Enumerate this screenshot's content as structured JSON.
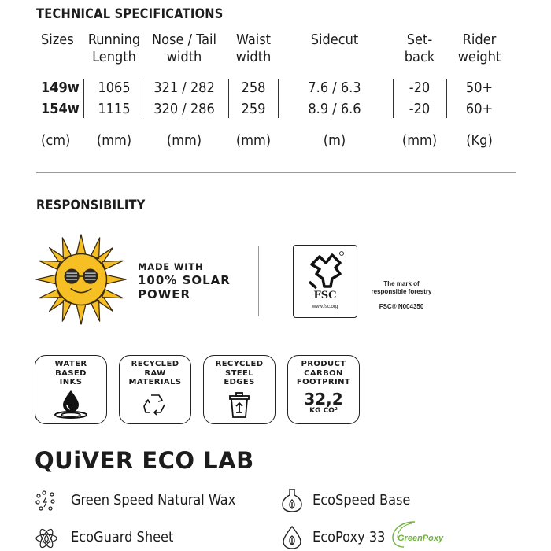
{
  "technical": {
    "title": "TECHNICAL SPECIFICATIONS",
    "headers": {
      "sizes": "Sizes",
      "running_length": "Running\nLength",
      "nose_tail": "Nose / Tail\nwidth",
      "waist": "Waist\nwidth",
      "sidecut": "Sidecut",
      "setback": "Set-\nback",
      "rider": "Rider\nweight"
    },
    "rows": [
      {
        "size": "149w",
        "running_length": "1065",
        "nose_tail": "321 / 282",
        "waist": "258",
        "sidecut": "7.6 / 6.3",
        "setback": "-20",
        "rider": "50+"
      },
      {
        "size": "154w",
        "running_length": "1115",
        "nose_tail": "320 / 286",
        "waist": "259",
        "sidecut": "8.9 / 6.6",
        "setback": "-20",
        "rider": "60+"
      }
    ],
    "units": {
      "sizes": "(cm)",
      "running_length": "(mm)",
      "nose_tail": "(mm)",
      "waist": "(mm)",
      "sidecut": "(m)",
      "setback": "(mm)",
      "rider": "(Kg)"
    }
  },
  "responsibility": {
    "title": "RESPONSIBILITY",
    "solar": {
      "line1": "MADE WITH",
      "line2": "100% SOLAR",
      "line3": "POWER"
    },
    "fsc": {
      "logo": "FSC",
      "url": "www.fsc.org",
      "mark_line1": "The mark of",
      "mark_line2": "responsible forestry",
      "code": "FSC® N004350"
    },
    "badges": [
      {
        "label": "WATER\nBASED\nINKS",
        "icon": "water-drop-icon"
      },
      {
        "label": "RECYCLED\nRAW\nMATERIALS",
        "icon": "recycle-icon"
      },
      {
        "label": "RECYCLED\nSTEEL\nEDGES",
        "icon": "recycle-bin-icon"
      },
      {
        "label": "PRODUCT\nCARBON\nFOOTPRINT",
        "value": "32,2",
        "unit": "KG CO²"
      }
    ]
  },
  "eco_lab": {
    "title": "QUiVER ECO LAB",
    "items": [
      {
        "label": "Green Speed Natural Wax",
        "icon": "wax-icon"
      },
      {
        "label": "EcoSpeed Base",
        "icon": "flask-icon"
      },
      {
        "label": "EcoGuard Sheet",
        "icon": "atom-icon"
      },
      {
        "label": "EcoPoxy 33",
        "icon": "drop-leaf-icon"
      }
    ],
    "greenpoxy_logo": "GreenPoxy"
  },
  "colors": {
    "sun": "#f6c024",
    "sun_outline": "#3a2a10",
    "greenpoxy": "#6fb33a"
  }
}
